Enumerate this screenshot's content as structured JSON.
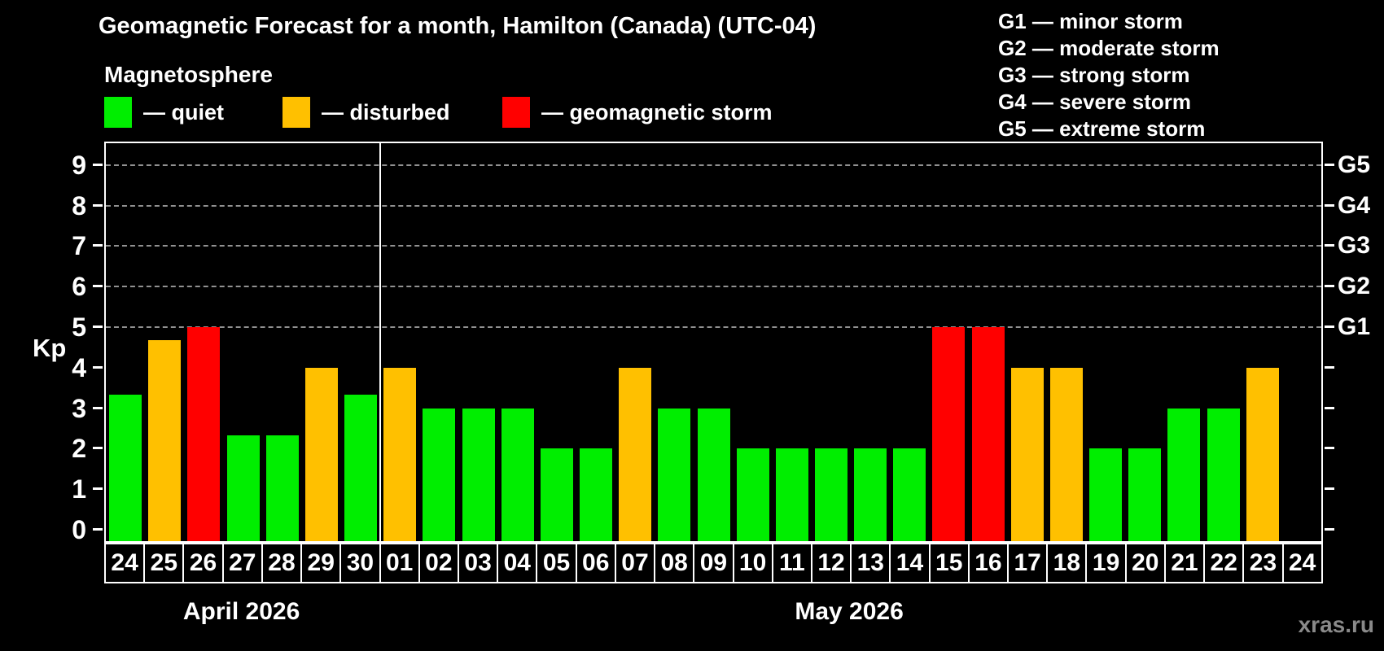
{
  "title": "Geomagnetic Forecast for a month, Hamilton (Canada) (UTC-04)",
  "subtitle": "Magnetosphere",
  "legend": [
    {
      "label": "— quiet",
      "status": "quiet"
    },
    {
      "label": "— disturbed",
      "status": "disturbed"
    },
    {
      "label": "— geomagnetic storm",
      "status": "storm"
    }
  ],
  "g_scale_legend": [
    "G1 — minor storm",
    "G2 — moderate storm",
    "G3 — strong storm",
    "G4 — severe storm",
    "G5 — extreme storm"
  ],
  "watermark": "xras.ru",
  "chart_data": {
    "type": "bar",
    "title": "Geomagnetic Forecast for a month, Hamilton (Canada) (UTC-04)",
    "ylabel": "Kp",
    "ylim": [
      0,
      9.5
    ],
    "yticks": [
      0,
      1,
      2,
      3,
      4,
      5,
      6,
      7,
      8,
      9
    ],
    "gridlines_at": [
      5,
      6,
      7,
      8,
      9
    ],
    "grid": "dashed horizontal at storm levels only",
    "legend_position": "top",
    "right_axis": [
      {
        "kp": 5,
        "label": "G1"
      },
      {
        "kp": 6,
        "label": "G2"
      },
      {
        "kp": 7,
        "label": "G3"
      },
      {
        "kp": 8,
        "label": "G4"
      },
      {
        "kp": 9,
        "label": "G5"
      }
    ],
    "status_colors": {
      "quiet": "#00ee00",
      "disturbed": "#ffc000",
      "storm": "#ff0000"
    },
    "axis_color": "#ffffff",
    "gridline_color": "#919191",
    "background_color": "#000000",
    "months": [
      {
        "label": "April 2026",
        "days": [
          {
            "date": "24",
            "kp": 3.33,
            "status": "quiet"
          },
          {
            "date": "25",
            "kp": 4.67,
            "status": "disturbed"
          },
          {
            "date": "26",
            "kp": 5.0,
            "status": "storm"
          },
          {
            "date": "27",
            "kp": 2.33,
            "status": "quiet"
          },
          {
            "date": "28",
            "kp": 2.33,
            "status": "quiet"
          },
          {
            "date": "29",
            "kp": 4.0,
            "status": "disturbed"
          },
          {
            "date": "30",
            "kp": 3.33,
            "status": "quiet"
          }
        ]
      },
      {
        "label": "May 2026",
        "days": [
          {
            "date": "01",
            "kp": 4.0,
            "status": "disturbed"
          },
          {
            "date": "02",
            "kp": 3.0,
            "status": "quiet"
          },
          {
            "date": "03",
            "kp": 3.0,
            "status": "quiet"
          },
          {
            "date": "04",
            "kp": 3.0,
            "status": "quiet"
          },
          {
            "date": "05",
            "kp": 2.0,
            "status": "quiet"
          },
          {
            "date": "06",
            "kp": 2.0,
            "status": "quiet"
          },
          {
            "date": "07",
            "kp": 4.0,
            "status": "disturbed"
          },
          {
            "date": "08",
            "kp": 3.0,
            "status": "quiet"
          },
          {
            "date": "09",
            "kp": 3.0,
            "status": "quiet"
          },
          {
            "date": "10",
            "kp": 2.0,
            "status": "quiet"
          },
          {
            "date": "11",
            "kp": 2.0,
            "status": "quiet"
          },
          {
            "date": "12",
            "kp": 2.0,
            "status": "quiet"
          },
          {
            "date": "13",
            "kp": 2.0,
            "status": "quiet"
          },
          {
            "date": "14",
            "kp": 2.0,
            "status": "quiet"
          },
          {
            "date": "15",
            "kp": 5.0,
            "status": "storm"
          },
          {
            "date": "16",
            "kp": 5.0,
            "status": "storm"
          },
          {
            "date": "17",
            "kp": 4.0,
            "status": "disturbed"
          },
          {
            "date": "18",
            "kp": 4.0,
            "status": "disturbed"
          },
          {
            "date": "19",
            "kp": 2.0,
            "status": "quiet"
          },
          {
            "date": "20",
            "kp": 2.0,
            "status": "quiet"
          },
          {
            "date": "21",
            "kp": 3.0,
            "status": "quiet"
          },
          {
            "date": "22",
            "kp": 3.0,
            "status": "quiet"
          },
          {
            "date": "23",
            "kp": 4.0,
            "status": "disturbed"
          },
          {
            "date": "24",
            "kp": null,
            "status": "none"
          }
        ]
      }
    ]
  }
}
